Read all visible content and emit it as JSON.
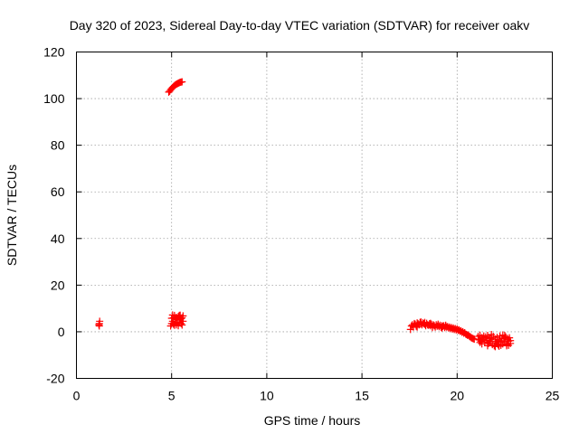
{
  "chart_data": {
    "type": "scatter",
    "title": "Day 320 of 2023, Sidereal Day-to-day VTEC variation (SDTVAR) for receiver oakv",
    "xlabel": "GPS time / hours",
    "ylabel": "SDTVAR / TECUs",
    "xlim": [
      0,
      25
    ],
    "ylim": [
      -20,
      120
    ],
    "x_ticks": [
      0,
      5,
      10,
      15,
      20,
      25
    ],
    "y_ticks": [
      -20,
      0,
      20,
      40,
      60,
      80,
      100,
      120
    ],
    "x_tick_labels": [
      "0",
      "5",
      "10",
      "15",
      "20",
      "25"
    ],
    "y_tick_labels": [
      "-20",
      "0",
      "20",
      "40",
      "60",
      "80",
      "100",
      "120"
    ],
    "grid": true,
    "marker": "plus",
    "series": [
      {
        "name": "SDTVAR",
        "color": "#ff0000",
        "points": [
          [
            1.2,
            2.5
          ],
          [
            1.2,
            3.5
          ],
          [
            1.22,
            4.5
          ],
          [
            1.18,
            3.0
          ],
          [
            4.85,
            102.8
          ],
          [
            4.9,
            103.2
          ],
          [
            4.95,
            103.8
          ],
          [
            5.0,
            104.3
          ],
          [
            5.05,
            104.8
          ],
          [
            5.1,
            105.2
          ],
          [
            5.15,
            105.6
          ],
          [
            5.2,
            105.9
          ],
          [
            5.25,
            106.2
          ],
          [
            5.3,
            106.4
          ],
          [
            5.35,
            106.6
          ],
          [
            5.4,
            106.8
          ],
          [
            5.45,
            107.0
          ],
          [
            5.5,
            107.1
          ],
          [
            5.55,
            107.2
          ],
          [
            4.95,
            2.5
          ],
          [
            5.0,
            3.5
          ],
          [
            5.05,
            4.5
          ],
          [
            5.1,
            6.0
          ],
          [
            5.15,
            7.0
          ],
          [
            5.2,
            5.5
          ],
          [
            5.25,
            3.0
          ],
          [
            5.3,
            4.0
          ],
          [
            5.35,
            6.5
          ],
          [
            5.4,
            7.0
          ],
          [
            5.45,
            5.0
          ],
          [
            5.5,
            3.5
          ],
          [
            5.55,
            6.0
          ],
          [
            5.6,
            4.5
          ],
          [
            5.05,
            7.2
          ],
          [
            5.15,
            2.8
          ],
          [
            5.25,
            6.2
          ],
          [
            5.35,
            2.6
          ],
          [
            5.45,
            7.1
          ],
          [
            5.55,
            2.9
          ],
          [
            5.0,
            5.8
          ],
          [
            5.2,
            4.2
          ],
          [
            5.4,
            3.8
          ],
          [
            5.6,
            6.8
          ],
          [
            5.1,
            3.2
          ],
          [
            5.3,
            5.2
          ],
          [
            5.5,
            5.6
          ],
          [
            17.55,
            1.0
          ],
          [
            17.6,
            2.5
          ],
          [
            17.65,
            3.0
          ],
          [
            17.7,
            2.0
          ],
          [
            17.75,
            3.5
          ],
          [
            17.8,
            3.2
          ],
          [
            17.85,
            2.4
          ],
          [
            17.9,
            3.8
          ],
          [
            17.95,
            3.4
          ],
          [
            18.0,
            3.0
          ],
          [
            18.05,
            4.0
          ],
          [
            18.1,
            3.6
          ],
          [
            18.15,
            3.0
          ],
          [
            18.2,
            3.8
          ],
          [
            18.25,
            3.4
          ],
          [
            18.3,
            3.2
          ],
          [
            18.35,
            2.6
          ],
          [
            18.4,
            3.6
          ],
          [
            18.45,
            3.0
          ],
          [
            18.5,
            2.8
          ],
          [
            18.55,
            3.4
          ],
          [
            18.6,
            2.6
          ],
          [
            18.65,
            3.2
          ],
          [
            18.7,
            2.4
          ],
          [
            18.75,
            3.0
          ],
          [
            18.8,
            2.6
          ],
          [
            18.85,
            2.0
          ],
          [
            18.9,
            3.0
          ],
          [
            18.95,
            2.4
          ],
          [
            19.0,
            2.8
          ],
          [
            19.05,
            2.2
          ],
          [
            19.1,
            2.8
          ],
          [
            19.15,
            2.0
          ],
          [
            19.2,
            2.6
          ],
          [
            19.25,
            2.2
          ],
          [
            19.3,
            2.6
          ],
          [
            19.35,
            1.8
          ],
          [
            19.4,
            2.4
          ],
          [
            19.45,
            2.0
          ],
          [
            19.5,
            2.2
          ],
          [
            19.55,
            1.6
          ],
          [
            19.6,
            2.0
          ],
          [
            19.65,
            1.4
          ],
          [
            19.7,
            1.8
          ],
          [
            19.75,
            1.2
          ],
          [
            19.8,
            1.6
          ],
          [
            19.85,
            1.0
          ],
          [
            19.9,
            1.4
          ],
          [
            19.95,
            0.8
          ],
          [
            20.0,
            1.2
          ],
          [
            20.05,
            0.6
          ],
          [
            20.1,
            0.8
          ],
          [
            20.15,
            0.2
          ],
          [
            20.2,
            0.4
          ],
          [
            20.25,
            -0.2
          ],
          [
            20.3,
            0.0
          ],
          [
            20.35,
            -0.6
          ],
          [
            20.4,
            -0.4
          ],
          [
            20.45,
            -1.0
          ],
          [
            20.5,
            -1.2
          ],
          [
            20.55,
            -1.6
          ],
          [
            20.6,
            -1.4
          ],
          [
            20.65,
            -2.0
          ],
          [
            20.7,
            -2.2
          ],
          [
            20.75,
            -2.6
          ],
          [
            20.8,
            -2.8
          ],
          [
            20.85,
            -3.0
          ],
          [
            20.9,
            -3.2
          ],
          [
            18.1,
            4.2
          ],
          [
            18.3,
            4.0
          ],
          [
            18.6,
            3.6
          ],
          [
            19.0,
            3.2
          ],
          [
            19.4,
            2.8
          ],
          [
            17.9,
            2.0
          ],
          [
            18.7,
            1.8
          ],
          [
            19.2,
            1.6
          ],
          [
            21.1,
            -2.0
          ],
          [
            21.15,
            -3.5
          ],
          [
            21.2,
            -1.5
          ],
          [
            21.25,
            -4.0
          ],
          [
            21.3,
            -2.5
          ],
          [
            21.35,
            -3.0
          ],
          [
            21.4,
            -1.8
          ],
          [
            21.45,
            -4.5
          ],
          [
            21.5,
            -2.2
          ],
          [
            21.55,
            -3.8
          ],
          [
            21.6,
            -1.6
          ],
          [
            21.65,
            -5.0
          ],
          [
            21.7,
            -2.6
          ],
          [
            21.75,
            -4.2
          ],
          [
            21.8,
            -3.0
          ],
          [
            21.85,
            -5.5
          ],
          [
            21.9,
            -2.0
          ],
          [
            21.95,
            -6.0
          ],
          [
            22.0,
            -3.2
          ],
          [
            22.05,
            -4.8
          ],
          [
            22.1,
            -2.4
          ],
          [
            22.15,
            -5.6
          ],
          [
            22.2,
            -3.6
          ],
          [
            22.25,
            -1.8
          ],
          [
            22.3,
            -4.4
          ],
          [
            22.35,
            -2.8
          ],
          [
            22.4,
            -5.2
          ],
          [
            22.45,
            -3.0
          ],
          [
            22.5,
            -4.6
          ],
          [
            22.55,
            -2.2
          ],
          [
            22.6,
            -5.4
          ],
          [
            22.65,
            -3.4
          ],
          [
            22.7,
            -4.0
          ],
          [
            22.75,
            -2.6
          ],
          [
            22.8,
            -5.0
          ],
          [
            21.3,
            -5.2
          ],
          [
            21.6,
            -6.0
          ],
          [
            21.8,
            -1.2
          ],
          [
            22.0,
            -6.4
          ],
          [
            22.2,
            -6.2
          ],
          [
            22.4,
            -1.4
          ],
          [
            22.6,
            -6.0
          ],
          [
            22.8,
            -3.8
          ],
          [
            21.4,
            -3.2
          ],
          [
            21.7,
            -3.6
          ],
          [
            22.1,
            -4.0
          ],
          [
            22.3,
            -5.8
          ],
          [
            22.5,
            -1.6
          ],
          [
            22.7,
            -5.8
          ],
          [
            21.2,
            -4.6
          ]
        ]
      }
    ]
  }
}
